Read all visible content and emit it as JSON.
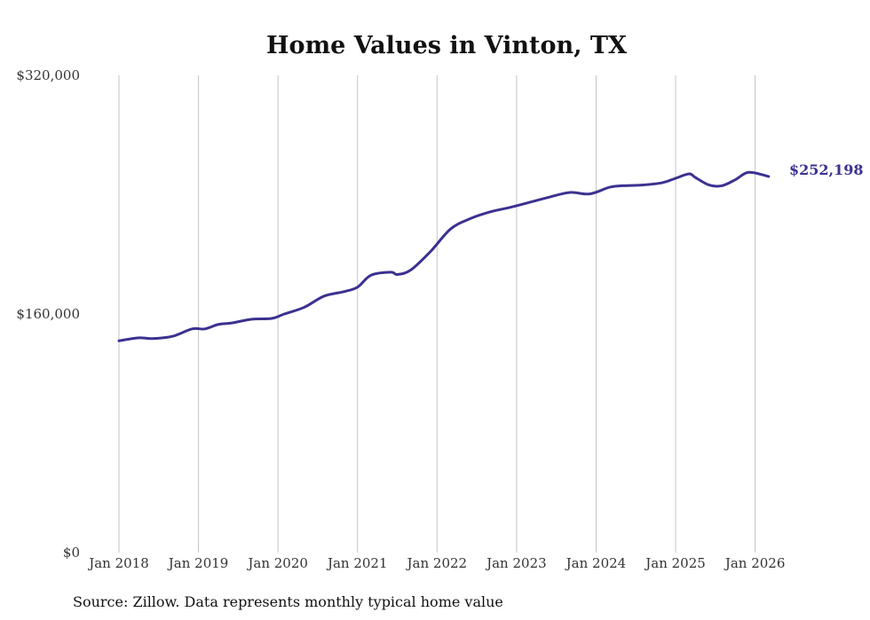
{
  "colors": {
    "line": "#3b3190",
    "grid": "#c4c4c4",
    "text": "#333333"
  },
  "chart_data": {
    "type": "line",
    "title": "Home Values in Vinton, TX",
    "xlabel": "",
    "ylabel": "",
    "ylim": [
      0,
      320000
    ],
    "xlim": [
      2018.0,
      2026.25
    ],
    "y_ticks": [
      {
        "value": 0,
        "label": "$0"
      },
      {
        "value": 160000,
        "label": "$160,000"
      },
      {
        "value": 320000,
        "label": "$320,000"
      }
    ],
    "x_ticks": [
      {
        "value": 2018,
        "label": "Jan 2018"
      },
      {
        "value": 2019,
        "label": "Jan 2019"
      },
      {
        "value": 2020,
        "label": "Jan 2020"
      },
      {
        "value": 2021,
        "label": "Jan 2021"
      },
      {
        "value": 2022,
        "label": "Jan 2022"
      },
      {
        "value": 2023,
        "label": "Jan 2023"
      },
      {
        "value": 2024,
        "label": "Jan 2024"
      },
      {
        "value": 2025,
        "label": "Jan 2025"
      },
      {
        "value": 2026,
        "label": "Jan 2026"
      }
    ],
    "series": [
      {
        "name": "Typical home value",
        "x": [
          2018.0,
          2018.25,
          2018.42,
          2018.67,
          2018.92,
          2019.08,
          2019.25,
          2019.42,
          2019.67,
          2019.92,
          2020.08,
          2020.33,
          2020.58,
          2020.83,
          2021.0,
          2021.17,
          2021.42,
          2021.5,
          2021.67,
          2021.92,
          2022.17,
          2022.42,
          2022.67,
          2022.92,
          2023.17,
          2023.42,
          2023.67,
          2023.92,
          2024.17,
          2024.33,
          2024.58,
          2024.83,
          2025.0,
          2025.17,
          2025.25,
          2025.42,
          2025.58,
          2025.75,
          2025.92,
          2026.17
        ],
        "values": [
          142000,
          144000,
          143500,
          145000,
          150000,
          150000,
          153000,
          154000,
          156500,
          157000,
          160000,
          164500,
          172000,
          175000,
          178000,
          186000,
          188000,
          186500,
          189500,
          202000,
          217000,
          224000,
          228500,
          231500,
          235000,
          238500,
          241500,
          240500,
          245000,
          246000,
          246500,
          248000,
          251000,
          254000,
          251500,
          246500,
          246000,
          250000,
          255000,
          252198
        ]
      }
    ],
    "end_label": "$252,198",
    "source": "Source: Zillow. Data represents monthly typical home value"
  }
}
